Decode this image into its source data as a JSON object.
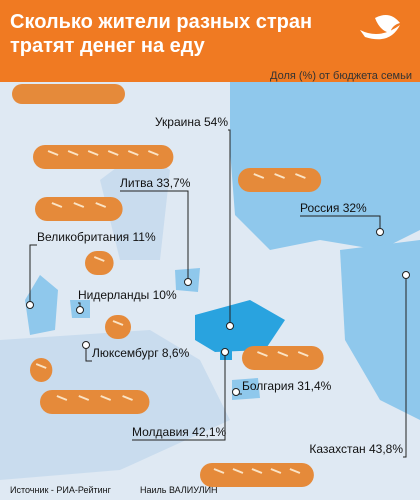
{
  "chart_data": {
    "type": "pictograph",
    "title": "Сколько жители разных стран тратят денег на еду",
    "subtitle": "Доля (%) от бюджета семьи",
    "categories": [
      "Украина",
      "Литва",
      "Великобритания",
      "Нидерланды",
      "Люксембург",
      "Россия",
      "Болгария",
      "Молдавия",
      "Казахстан"
    ],
    "values": [
      54,
      33.7,
      11,
      10,
      8.6,
      32,
      31.4,
      42.1,
      43.8
    ],
    "value_labels": [
      "54%",
      "33,7%",
      "11%",
      "10%",
      "8,6%",
      "32%",
      "31,4%",
      "42,1%",
      "43,8%"
    ],
    "color": "#e58a3a",
    "source": "Источник - РИА-Рейтинг",
    "author": "Наиль ВАЛИУЛИН"
  }
}
